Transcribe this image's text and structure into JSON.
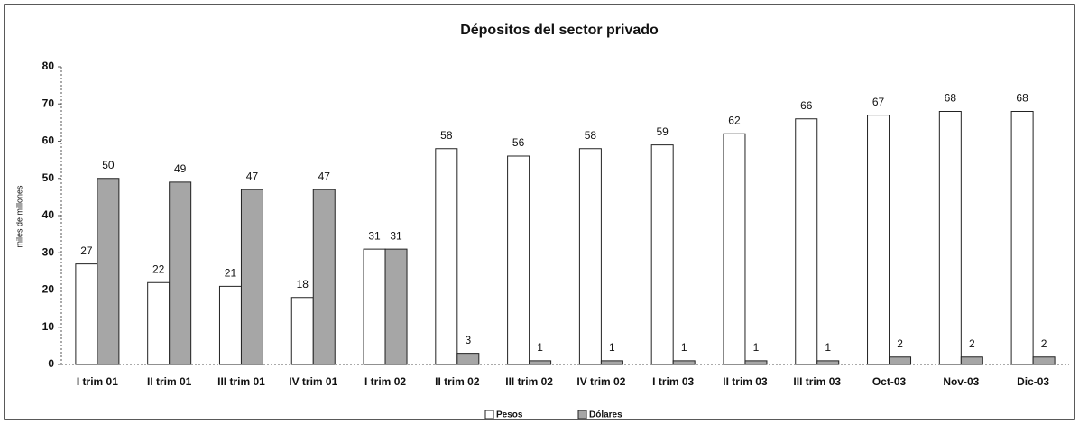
{
  "chart_data": {
    "type": "bar",
    "title": "Dépositos del sector privado",
    "y_label": "miles de millones",
    "categories": [
      "I trim 01",
      "II trim 01",
      "III trim 01",
      "IV trim 01",
      "I trim 02",
      "II trim 02",
      "III trim 02",
      "IV trim 02",
      "I trim 03",
      "II trim 03",
      "III trim 03",
      "Oct-03",
      "Nov-03",
      "Dic-03"
    ],
    "series": [
      {
        "name": "Pesos",
        "color": "#ffffff",
        "values": [
          27,
          22,
          21,
          18,
          31,
          58,
          56,
          58,
          59,
          62,
          66,
          67,
          68,
          68
        ]
      },
      {
        "name": "Dólares",
        "color": "#a6a6a6",
        "values": [
          50,
          49,
          47,
          47,
          31,
          3,
          1,
          1,
          1,
          1,
          1,
          2,
          2,
          2
        ]
      }
    ],
    "ylim": [
      0,
      80
    ],
    "yticks": [
      0,
      10,
      20,
      30,
      40,
      50,
      60,
      70,
      80
    ],
    "grid": false,
    "legend": "bottom"
  }
}
